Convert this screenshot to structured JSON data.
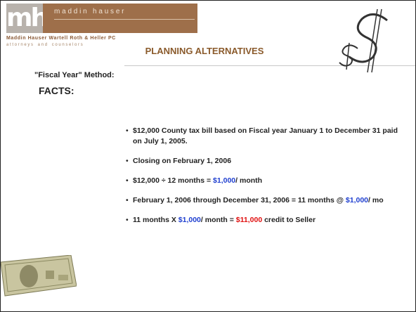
{
  "header": {
    "logo_mark": "mh",
    "logo_name": "m a d d i n   h a u s e r",
    "firm": "Maddin Hauser Wartell Roth & Heller PC",
    "tagline": "a t t o r n e y s    a n d    c o u n s e l o r s"
  },
  "title": "PLANNING ALTERNATIVES",
  "subtitle": "\"Fiscal Year\" Method:",
  "section": "FACTS:",
  "bullets": [
    [
      {
        "text": "$12,000 County tax bill based on Fiscal year January 1 to December 31 paid on July 1, 2005."
      }
    ],
    [
      {
        "text": "Closing on February 1, 2006"
      }
    ],
    [
      {
        "text": "$12,000 ÷ 12 months = "
      },
      {
        "text": "$1,000",
        "color": "#1f3fd0"
      },
      {
        "text": "/ month"
      }
    ],
    [
      {
        "text": "February 1, 2006 through December 31, 2006 = 11 months @ "
      },
      {
        "text": "$1,000",
        "color": "#1f3fd0"
      },
      {
        "text": "/ mo"
      }
    ],
    [
      {
        "text": "11 months X "
      },
      {
        "text": "$1,000",
        "color": "#1f3fd0"
      },
      {
        "text": "/ month = "
      },
      {
        "text": "$11,000",
        "color": "#e01010"
      },
      {
        "text": " credit to Seller"
      }
    ]
  ]
}
